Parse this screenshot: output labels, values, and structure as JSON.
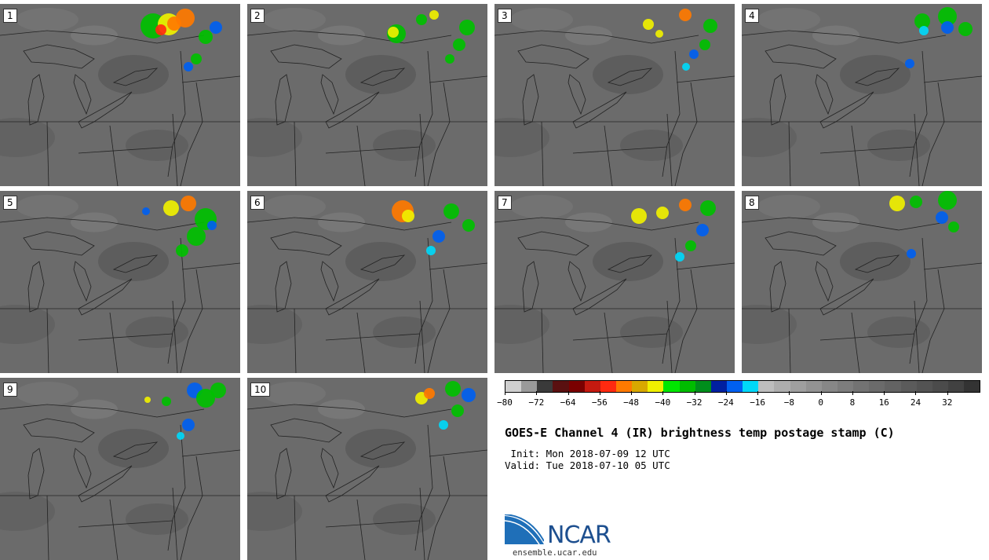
{
  "title": "GOES-E Channel 4 (IR) brightness temp postage stamp (C)",
  "init_text": " Init: Mon 2018-07-09 12 UTC",
  "valid_text": "Valid: Tue 2018-07-10 05 UTC",
  "site": "ensemble.ucar.edu",
  "logo_text": "NCAR",
  "panels": [
    "1",
    "2",
    "3",
    "4",
    "5",
    "6",
    "7",
    "8",
    "9",
    "10"
  ],
  "colorbar": {
    "min": -80,
    "max": 40,
    "step": 4,
    "tick_values": [
      -80,
      -72,
      -64,
      -56,
      -48,
      -40,
      -32,
      -24,
      -16,
      -8,
      0,
      8,
      16,
      24,
      32
    ],
    "tick_labels": [
      "−80",
      "−72",
      "−64",
      "−56",
      "−48",
      "−40",
      "−32",
      "−24",
      "−16",
      "−8",
      "0",
      "8",
      "16",
      "24",
      "32"
    ],
    "colors": [
      "#cfcfcf",
      "#9a9a9a",
      "#3a3a3a",
      "#5a1010",
      "#7a0000",
      "#c41a10",
      "#ff2a10",
      "#ff7a00",
      "#d8a800",
      "#f0f000",
      "#00e600",
      "#00bc00",
      "#008e1c",
      "#0020a0",
      "#0060f0",
      "#00d8f8",
      "#bdbdbd",
      "#adadad",
      "#9f9f9f",
      "#939393",
      "#878787",
      "#7d7d7d",
      "#737373",
      "#6b6b6b",
      "#636363",
      "#5b5b5b",
      "#535353",
      "#4b4b4b",
      "#414141",
      "#333333"
    ]
  }
}
